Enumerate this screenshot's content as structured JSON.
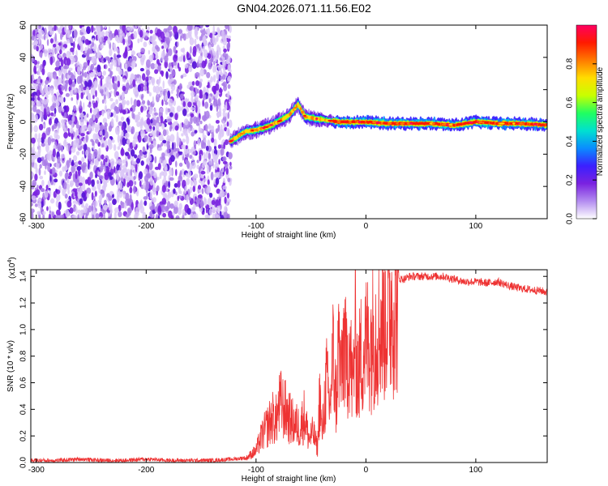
{
  "title": "GN04.2026.071.11.56.E02",
  "chart_data": [
    {
      "type": "heatmap",
      "name": "spectrogram",
      "xlabel": "Height of straight line (km)",
      "ylabel": "Frequency (Hz)",
      "xlim": [
        -305,
        165
      ],
      "ylim": [
        -60,
        60
      ],
      "x_ticks": [
        -300,
        -200,
        -100,
        0,
        100
      ],
      "x_tick_labels": [
        "-300",
        "-200",
        "-100",
        "0",
        "100"
      ],
      "y_ticks": [
        -60,
        -40,
        -20,
        0,
        20,
        40,
        60
      ],
      "y_tick_labels": [
        "-60",
        "-40",
        "-20",
        "0",
        "20",
        "40",
        "60"
      ],
      "noise_region_x": [
        -305,
        -123
      ],
      "ridge": {
        "x": [
          -123,
          -110,
          -100,
          -90,
          -80,
          -70,
          -65,
          -62,
          -55,
          -45,
          -35,
          -25,
          -15,
          0,
          20,
          40,
          60,
          80,
          90,
          100,
          120,
          140,
          165
        ],
        "y": [
          -12,
          -6,
          -5,
          -3,
          0,
          4,
          8,
          11,
          3,
          2,
          1,
          0,
          0,
          0,
          -1,
          -1,
          -1,
          -2,
          -1,
          0,
          -1,
          -1,
          -2
        ]
      },
      "colorbar": {
        "label": "Normalized spectral amplitude",
        "range": [
          0.0,
          1.0
        ],
        "ticks": [
          0.0,
          0.2,
          0.4,
          0.6,
          0.8
        ],
        "tick_labels": [
          "0.0",
          "0.2",
          "0.4",
          "0.6",
          "0.8"
        ],
        "colors": [
          "#ffffff",
          "#b38cf0",
          "#7a22e0",
          "#3b20ff",
          "#0a8cff",
          "#00e0d0",
          "#20ff60",
          "#c8ff00",
          "#ffdd00",
          "#ff7a00",
          "#ff1a00",
          "#ff0060"
        ]
      }
    },
    {
      "type": "line",
      "name": "snr",
      "xlabel": "Height of straight line (km)",
      "ylabel": "SNR (10 * v/v)",
      "y_multiplier_label": "(x10",
      "y_multiplier_exp": "4",
      "y_multiplier_close": ")",
      "xlim": [
        -305,
        165
      ],
      "ylim": [
        0.0,
        1.45
      ],
      "x_ticks": [
        -300,
        -200,
        -100,
        0,
        100
      ],
      "x_tick_labels": [
        "-300",
        "-200",
        "-100",
        "0",
        "100"
      ],
      "y_ticks": [
        0.0,
        0.2,
        0.4,
        0.6,
        0.8,
        1.0,
        1.2,
        1.4
      ],
      "y_tick_labels": [
        "0.0",
        "0.2",
        "0.4",
        "0.6",
        "0.8",
        "1.0",
        "1.2",
        "1.4"
      ],
      "color": "#ee3333",
      "series": [
        {
          "name": "SNR",
          "x": [
            -305,
            -280,
            -260,
            -240,
            -220,
            -200,
            -180,
            -160,
            -140,
            -120,
            -110,
            -100,
            -95,
            -90,
            -85,
            -82,
            -78,
            -72,
            -68,
            -64,
            -60,
            -56,
            -52,
            -48,
            -44,
            -42,
            -40,
            -36,
            -33,
            -30,
            -27,
            -25,
            -22,
            -20,
            -18,
            -15,
            -12,
            -10,
            -7,
            -5,
            0,
            5,
            10,
            15,
            20,
            25,
            30,
            35,
            40,
            50,
            60,
            70,
            80,
            90,
            100,
            110,
            120,
            130,
            140,
            150,
            160,
            165
          ],
          "y": [
            0.01,
            0.01,
            0.02,
            0.01,
            0.01,
            0.02,
            0.01,
            0.01,
            0.01,
            0.02,
            0.03,
            0.1,
            0.22,
            0.3,
            0.38,
            0.35,
            0.5,
            0.42,
            0.35,
            0.32,
            0.3,
            0.4,
            0.2,
            0.25,
            0.12,
            0.6,
            0.22,
            0.7,
            0.45,
            0.9,
            0.5,
            1.0,
            0.7,
            1.1,
            0.8,
            1.0,
            0.6,
            1.1,
            0.7,
            0.9,
            1.0,
            1.05,
            1.15,
            1.2,
            1.3,
            1.35,
            1.38,
            1.38,
            1.4,
            1.4,
            1.4,
            1.4,
            1.38,
            1.36,
            1.36,
            1.35,
            1.36,
            1.33,
            1.31,
            1.3,
            1.29,
            1.28
          ]
        }
      ]
    }
  ]
}
